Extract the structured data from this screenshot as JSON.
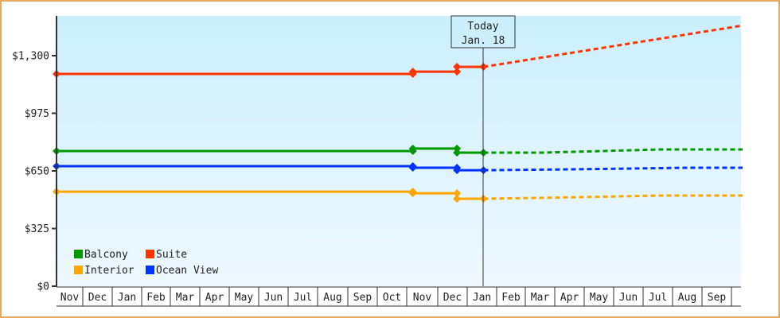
{
  "chart_data": {
    "type": "line",
    "title": "",
    "xlabel": "",
    "ylabel": "",
    "ylim": [
      0,
      1300
    ],
    "y_ticks": [
      {
        "value": 0,
        "label": "$0"
      },
      {
        "value": 325,
        "label": "$325"
      },
      {
        "value": 650,
        "label": "$650"
      },
      {
        "value": 975,
        "label": "$975"
      },
      {
        "value": 1300,
        "label": "$1,300"
      }
    ],
    "x_months": [
      "Nov",
      "Dec",
      "Jan",
      "Feb",
      "Mar",
      "Apr",
      "May",
      "Jun",
      "Jul",
      "Aug",
      "Sep",
      "Oct",
      "Nov",
      "Dec",
      "Jan",
      "Feb",
      "Mar",
      "Apr",
      "May",
      "Jun",
      "Jul",
      "Aug",
      "Sep"
    ],
    "grid": false,
    "legend_position": "bottom-left-inside",
    "today_marker": {
      "line1": "Today",
      "line2": "Jan. 18",
      "x_month_index": 14.5
    },
    "series": [
      {
        "name": "Balcony",
        "color": "#009900",
        "history": [
          [
            0,
            762
          ],
          [
            12.1,
            762
          ],
          [
            12.1,
            776
          ],
          [
            13.6,
            776
          ],
          [
            13.6,
            753
          ],
          [
            14.5,
            753
          ]
        ],
        "forecast": [
          [
            14.5,
            753
          ],
          [
            16.5,
            753
          ],
          [
            20.5,
            771
          ],
          [
            23.3,
            771
          ]
        ]
      },
      {
        "name": "Suite",
        "color": "#ff3300",
        "history": [
          [
            0,
            1197
          ],
          [
            12.1,
            1197
          ],
          [
            12.1,
            1210
          ],
          [
            13.6,
            1210
          ],
          [
            13.6,
            1237
          ],
          [
            14.5,
            1237
          ]
        ],
        "forecast": [
          [
            14.5,
            1237
          ],
          [
            23.3,
            1470
          ]
        ]
      },
      {
        "name": "Interior",
        "color": "#ffa500",
        "history": [
          [
            0,
            533
          ],
          [
            12.1,
            533
          ],
          [
            12.1,
            524
          ],
          [
            13.6,
            524
          ],
          [
            13.6,
            493
          ],
          [
            14.5,
            493
          ]
        ],
        "forecast": [
          [
            14.5,
            493
          ],
          [
            16.5,
            498
          ],
          [
            20.5,
            511
          ],
          [
            23.3,
            511
          ]
        ]
      },
      {
        "name": "Ocean View",
        "color": "#0033ff",
        "history": [
          [
            0,
            677
          ],
          [
            12.1,
            677
          ],
          [
            12.1,
            668
          ],
          [
            13.6,
            668
          ],
          [
            13.6,
            654
          ],
          [
            14.5,
            654
          ]
        ],
        "forecast": [
          [
            14.5,
            654
          ],
          [
            17.5,
            659
          ],
          [
            21.5,
            668
          ],
          [
            23.3,
            668
          ]
        ]
      }
    ]
  },
  "legend": [
    {
      "label": "Balcony",
      "color": "#009900"
    },
    {
      "label": "Suite",
      "color": "#ff3300"
    },
    {
      "label": "Interior",
      "color": "#ffa500"
    },
    {
      "label": "Ocean View",
      "color": "#0033ff"
    }
  ],
  "today": {
    "line1": "Today",
    "line2": "Jan. 18"
  },
  "colors": {
    "border": "#e8a860",
    "plot_top": "#cbeffc",
    "plot_bottom": "#eff8fe",
    "axis": "#333333"
  }
}
